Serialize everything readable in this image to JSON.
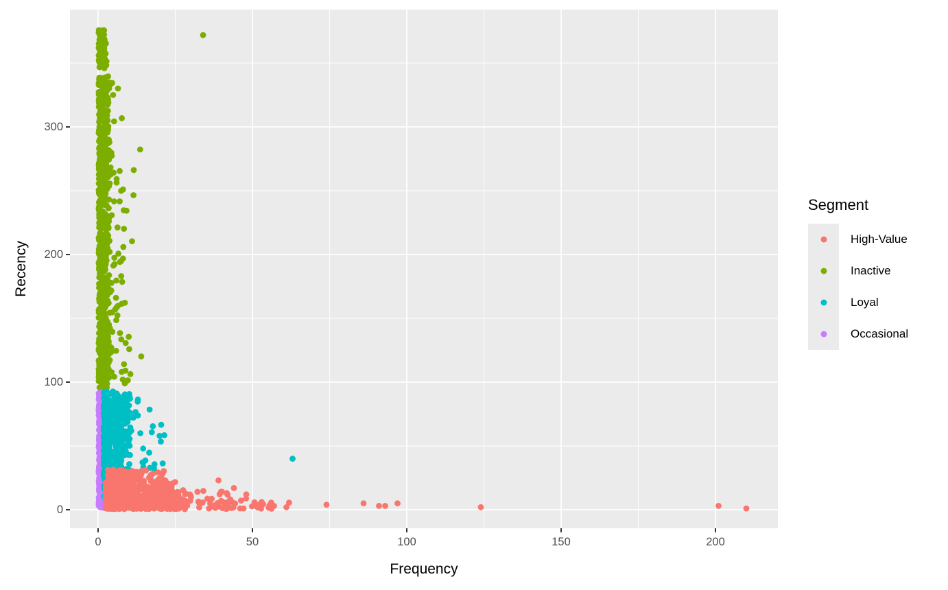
{
  "figure": {
    "background": "#FFFFFF",
    "panel_background": "#EBEBEB",
    "grid_color": "#FFFFFF",
    "tick_color": "#333333",
    "tick_label_color": "#4D4D4D",
    "axis_title_color": "#000000"
  },
  "axes": {
    "x": {
      "title": "Frequency",
      "ticks": [
        0,
        50,
        100,
        150,
        200
      ],
      "minor": [
        25,
        75,
        125,
        175
      ]
    },
    "y": {
      "title": "Recency",
      "ticks": [
        0,
        100,
        200,
        300
      ],
      "minor": [
        50,
        150,
        250,
        350
      ]
    }
  },
  "legend": {
    "title": "Segment",
    "position": "right",
    "items": [
      {
        "label": "High-Value",
        "color": "#F8766D"
      },
      {
        "label": "Inactive",
        "color": "#7CAE00"
      },
      {
        "label": "Loyal",
        "color": "#00BFC4"
      },
      {
        "label": "Occasional",
        "color": "#C77CFF"
      }
    ]
  },
  "chart_data": {
    "type": "scatter",
    "title": "",
    "xlabel": "Frequency",
    "ylabel": "Recency",
    "xlim": [
      -9.11,
      220.22
    ],
    "ylim": [
      -14.52,
      391.94
    ],
    "grid": true,
    "legend_position": "right",
    "point_radius": 4.4,
    "seed": 7,
    "series": [
      {
        "name": "Inactive",
        "color": "#7CAE00",
        "description": "Vertical dense column at Frequency 0-4, Recency 95-376, sparse spread to Frequency 15, one outlier",
        "clusters": [
          {
            "n": 650,
            "x": [
              0.2,
              3.5
            ],
            "y": [
              95,
              340
            ],
            "xbias": 1.4,
            "ybias": 1.0
          },
          {
            "n": 90,
            "x": [
              0.2,
              2.8
            ],
            "y": [
              346,
              376
            ],
            "xbias": 1.2,
            "ybias": 1.0
          },
          {
            "n": 70,
            "x": [
              3.5,
              9.0
            ],
            "y": [
              97,
              335
            ],
            "xbias": 1.9,
            "ybias": 1.0
          },
          {
            "n": 16,
            "x": [
              8.0,
              15.0
            ],
            "y": [
              100,
              300
            ],
            "xbias": 1.4,
            "ybias": 1.0
          }
        ],
        "points": [
          [
            34,
            372
          ]
        ]
      },
      {
        "name": "Occasional",
        "color": "#C77CFF",
        "description": "Narrow dense column at Frequency 0-2.8, Recency 1-92",
        "clusters": [
          {
            "n": 380,
            "x": [
              0.2,
              2.8
            ],
            "y": [
              1,
              92
            ],
            "xbias": 1.2,
            "ybias": 1.0
          }
        ],
        "points": []
      },
      {
        "name": "Loyal",
        "color": "#00BFC4",
        "description": "Dense blob Frequency 2-11, Recency 24-93, sparse to Frequency 21, one outlier",
        "clusters": [
          {
            "n": 420,
            "x": [
              1.8,
              10.5
            ],
            "y": [
              24,
              93
            ],
            "xbias": 1.5,
            "ybias": 0.8
          },
          {
            "n": 70,
            "x": [
              2.0,
              8.0
            ],
            "y": [
              5,
              26
            ],
            "xbias": 1.4,
            "ybias": 1.0
          },
          {
            "n": 26,
            "x": [
              10.0,
              21.5
            ],
            "y": [
              25,
              90
            ],
            "xbias": 1.3,
            "ybias": 1.0
          }
        ],
        "points": [
          [
            63,
            40
          ]
        ]
      },
      {
        "name": "High-Value",
        "color": "#F8766D",
        "description": "Dense blob Frequency 2-30 at Recency 0-32, long sparse tail to Frequency 210",
        "clusters": [
          {
            "n": 520,
            "x": [
              2.5,
              25.0
            ],
            "y": [
              0.5,
              22
            ],
            "xbias": 1.7,
            "ybias": 1.25
          },
          {
            "n": 90,
            "x": [
              20.0,
              42.0
            ],
            "y": [
              0.5,
              16
            ],
            "xbias": 1.5,
            "ybias": 1.3
          },
          {
            "n": 70,
            "x": [
              3.0,
              22.0
            ],
            "y": [
              22,
              32
            ],
            "xbias": 1.4,
            "ybias": 1.0
          },
          {
            "n": 26,
            "x": [
              40.0,
              63.0
            ],
            "y": [
              0.5,
              9
            ],
            "xbias": 1.2,
            "ybias": 1.4
          }
        ],
        "points": [
          [
            39,
            23
          ],
          [
            44,
            17
          ],
          [
            48,
            12
          ],
          [
            53,
            6
          ],
          [
            57,
            3
          ],
          [
            61,
            2
          ],
          [
            74,
            4
          ],
          [
            86,
            5
          ],
          [
            91,
            3
          ],
          [
            93,
            3
          ],
          [
            97,
            5
          ],
          [
            124,
            2
          ],
          [
            201,
            3
          ],
          [
            210,
            1
          ]
        ]
      }
    ]
  }
}
